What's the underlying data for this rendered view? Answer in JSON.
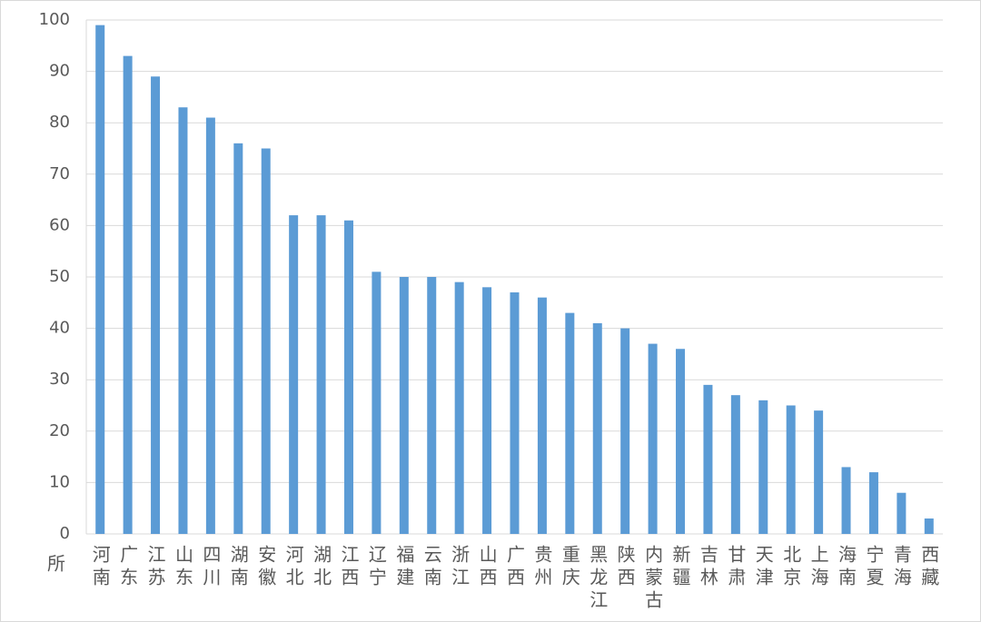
{
  "chart_data": {
    "type": "bar",
    "unit_label": "所",
    "categories": [
      "河南",
      "广东",
      "江苏",
      "山东",
      "四川",
      "湖南",
      "安徽",
      "河北",
      "湖北",
      "江西",
      "辽宁",
      "福建",
      "云南",
      "浙江",
      "山西",
      "广西",
      "贵州",
      "重庆",
      "黑龙江",
      "陕西",
      "内蒙古",
      "新疆",
      "吉林",
      "甘肃",
      "天津",
      "北京",
      "上海",
      "海南",
      "宁夏",
      "青海",
      "西藏"
    ],
    "values": [
      99,
      93,
      89,
      83,
      81,
      76,
      75,
      62,
      62,
      61,
      51,
      50,
      50,
      49,
      48,
      47,
      46,
      43,
      41,
      40,
      37,
      36,
      29,
      27,
      26,
      25,
      24,
      13,
      12,
      8,
      3
    ],
    "color": "#5b9bd5",
    "ylim": [
      0,
      100
    ],
    "yticks": [
      0,
      10,
      20,
      30,
      40,
      50,
      60,
      70,
      80,
      90,
      100
    ],
    "grid": true
  }
}
